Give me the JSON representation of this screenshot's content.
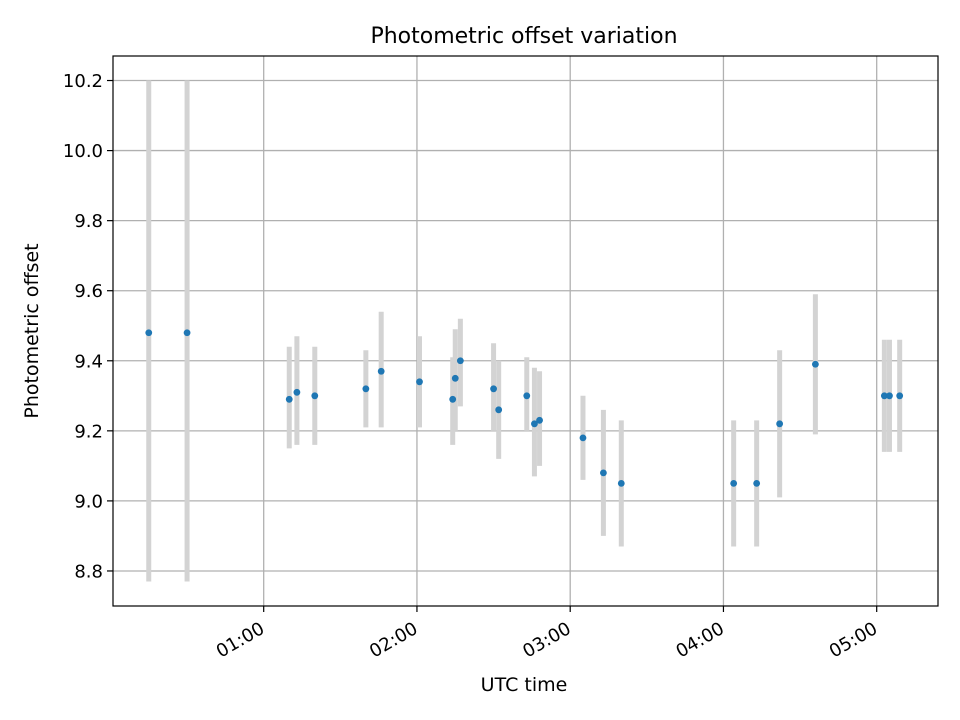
{
  "chart_data": {
    "type": "scatter",
    "title": "Photometric offset variation",
    "xlabel": "UTC time",
    "ylabel": "Photometric offset",
    "x_ticks": [
      "01:00",
      "02:00",
      "03:00",
      "04:00",
      "05:00"
    ],
    "y_ticks": [
      "8.8",
      "9.0",
      "9.2",
      "9.4",
      "9.6",
      "9.8",
      "10.0",
      "10.2"
    ],
    "xlim": [
      "00:01",
      "05:24"
    ],
    "ylim": [
      8.7,
      10.27
    ],
    "grid": true,
    "colors": {
      "marker": "#1f77b4",
      "errorbar": "#d3d3d3",
      "grid": "#b0b0b0"
    },
    "series": [
      {
        "points": [
          {
            "x": "00:15",
            "y": 9.48,
            "err_low": 8.77,
            "err_high": 10.2
          },
          {
            "x": "00:30",
            "y": 9.48,
            "err_low": 8.77,
            "err_high": 10.2
          },
          {
            "x": "01:10",
            "y": 9.29,
            "err_low": 9.15,
            "err_high": 9.44
          },
          {
            "x": "01:13",
            "y": 9.31,
            "err_low": 9.16,
            "err_high": 9.47
          },
          {
            "x": "01:20",
            "y": 9.3,
            "err_low": 9.16,
            "err_high": 9.44
          },
          {
            "x": "01:40",
            "y": 9.32,
            "err_low": 9.21,
            "err_high": 9.43
          },
          {
            "x": "01:46",
            "y": 9.37,
            "err_low": 9.21,
            "err_high": 9.54
          },
          {
            "x": "02:01",
            "y": 9.34,
            "err_low": 9.21,
            "err_high": 9.47
          },
          {
            "x": "02:14",
            "y": 9.29,
            "err_low": 9.16,
            "err_high": 9.41
          },
          {
            "x": "02:15",
            "y": 9.35,
            "err_low": 9.2,
            "err_high": 9.49
          },
          {
            "x": "02:17",
            "y": 9.4,
            "err_low": 9.27,
            "err_high": 9.52
          },
          {
            "x": "02:30",
            "y": 9.32,
            "err_low": 9.2,
            "err_high": 9.45
          },
          {
            "x": "02:32",
            "y": 9.26,
            "err_low": 9.12,
            "err_high": 9.4
          },
          {
            "x": "02:43",
            "y": 9.3,
            "err_low": 9.2,
            "err_high": 9.41
          },
          {
            "x": "02:46",
            "y": 9.22,
            "err_low": 9.07,
            "err_high": 9.38
          },
          {
            "x": "02:48",
            "y": 9.23,
            "err_low": 9.1,
            "err_high": 9.37
          },
          {
            "x": "03:05",
            "y": 9.18,
            "err_low": 9.06,
            "err_high": 9.3
          },
          {
            "x": "03:13",
            "y": 9.08,
            "err_low": 8.9,
            "err_high": 9.26
          },
          {
            "x": "03:20",
            "y": 9.05,
            "err_low": 8.87,
            "err_high": 9.23
          },
          {
            "x": "04:04",
            "y": 9.05,
            "err_low": 8.87,
            "err_high": 9.23
          },
          {
            "x": "04:13",
            "y": 9.05,
            "err_low": 8.87,
            "err_high": 9.23
          },
          {
            "x": "04:22",
            "y": 9.22,
            "err_low": 9.01,
            "err_high": 9.43
          },
          {
            "x": "04:36",
            "y": 9.39,
            "err_low": 9.19,
            "err_high": 9.59
          },
          {
            "x": "05:03",
            "y": 9.3,
            "err_low": 9.14,
            "err_high": 9.46
          },
          {
            "x": "05:05",
            "y": 9.3,
            "err_low": 9.14,
            "err_high": 9.46
          },
          {
            "x": "05:09",
            "y": 9.3,
            "err_low": 9.14,
            "err_high": 9.46
          }
        ]
      }
    ]
  }
}
